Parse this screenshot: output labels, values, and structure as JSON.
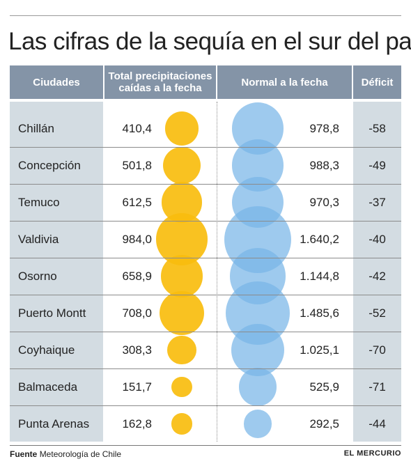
{
  "title": "Las cifras de la sequía en el sur del país",
  "headers": {
    "city": "Ciudades",
    "total_line1": "Total precipitaciones",
    "total_line2": "caídas a la fecha",
    "normal": "Normal a la fecha",
    "deficit": "Déficit"
  },
  "footer": {
    "source_label": "Fuente",
    "source_text": "Meteorología de Chile",
    "brand": "EL MERCURIO"
  },
  "colors": {
    "total_bubble": "#f9bd0e",
    "normal_bubble": "#78b6e8",
    "header_bg": "#8494a7"
  },
  "chart_data": {
    "type": "table",
    "columns": [
      "Ciudades",
      "Total precipitaciones caídas a la fecha",
      "Normal a la fecha",
      "Déficit"
    ],
    "rows": [
      {
        "city": "Chillán",
        "total": 410.4,
        "total_label": "410,4",
        "normal": 978.8,
        "normal_label": "978,8",
        "deficit": "-58"
      },
      {
        "city": "Concepción",
        "total": 501.8,
        "total_label": "501,8",
        "normal": 988.3,
        "normal_label": "988,3",
        "deficit": "-49"
      },
      {
        "city": "Temuco",
        "total": 612.5,
        "total_label": "612,5",
        "normal": 970.3,
        "normal_label": "970,3",
        "deficit": "-37"
      },
      {
        "city": "Valdivia",
        "total": 984.0,
        "total_label": "984,0",
        "normal": 1640.2,
        "normal_label": "1.640,2",
        "deficit": "-40"
      },
      {
        "city": "Osorno",
        "total": 658.9,
        "total_label": "658,9",
        "normal": 1144.8,
        "normal_label": "1.144,8",
        "deficit": "-42"
      },
      {
        "city": "Puerto Montt",
        "total": 708.0,
        "total_label": "708,0",
        "normal": 1485.6,
        "normal_label": "1.485,6",
        "deficit": "-52"
      },
      {
        "city": "Coyhaique",
        "total": 308.3,
        "total_label": "308,3",
        "normal": 1025.1,
        "normal_label": "1.025,1",
        "deficit": "-70"
      },
      {
        "city": "Balmaceda",
        "total": 151.7,
        "total_label": "151,7",
        "normal": 525.9,
        "normal_label": "525,9",
        "deficit": "-71"
      },
      {
        "city": "Punta Arenas",
        "total": 162.8,
        "total_label": "162,8",
        "normal": 292.5,
        "normal_label": "292,5",
        "deficit": "-44"
      }
    ]
  }
}
